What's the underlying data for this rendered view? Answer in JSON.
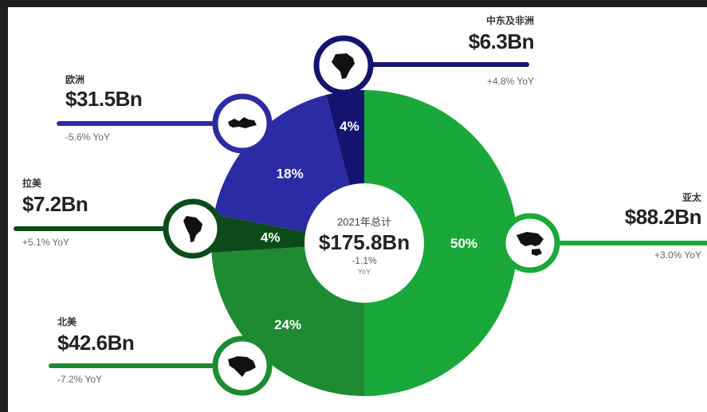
{
  "colors": {
    "asia_pacific": "#1aa83a",
    "north_america": "#1e8a32",
    "latin_america": "#0c4a1a",
    "europe": "#2b2ba5",
    "middle_east_africa": "#141470"
  },
  "center": {
    "label": "2021年总计",
    "total": "$175.8Bn",
    "change": "-1.1%",
    "unit": "YoY"
  },
  "regions": {
    "mea": {
      "name": "中东及非洲",
      "amount": "$6.3Bn",
      "yoy": "+4.8% YoY",
      "icon": "africa-map-icon"
    },
    "europe": {
      "name": "欧洲",
      "amount": "$31.5Bn",
      "yoy": "-5.6% YoY",
      "icon": "europe-map-icon"
    },
    "latam": {
      "name": "拉美",
      "amount": "$7.2Bn",
      "yoy": "+5.1% YoY",
      "icon": "south-america-map-icon"
    },
    "na": {
      "name": "北美",
      "amount": "$42.6Bn",
      "yoy": "-7.2% YoY",
      "icon": "north-america-map-icon"
    },
    "apac": {
      "name": "亚太",
      "amount": "$88.2Bn",
      "yoy": "+3.0% YoY",
      "icon": "asia-pacific-map-icon"
    }
  },
  "chart_data": {
    "type": "pie",
    "title": "2021年总计",
    "total": 175.8,
    "unit": "$Bn",
    "slices": [
      {
        "name": "亚太",
        "percent": 50,
        "value": 88.2,
        "yoy": 3.0
      },
      {
        "name": "北美",
        "percent": 24,
        "value": 42.6,
        "yoy": -7.2
      },
      {
        "name": "拉美",
        "percent": 4,
        "value": 7.2,
        "yoy": 5.1
      },
      {
        "name": "欧洲",
        "percent": 18,
        "value": 31.5,
        "yoy": -5.6
      },
      {
        "name": "中东及非洲",
        "percent": 4,
        "value": 6.3,
        "yoy": 4.8
      }
    ]
  }
}
